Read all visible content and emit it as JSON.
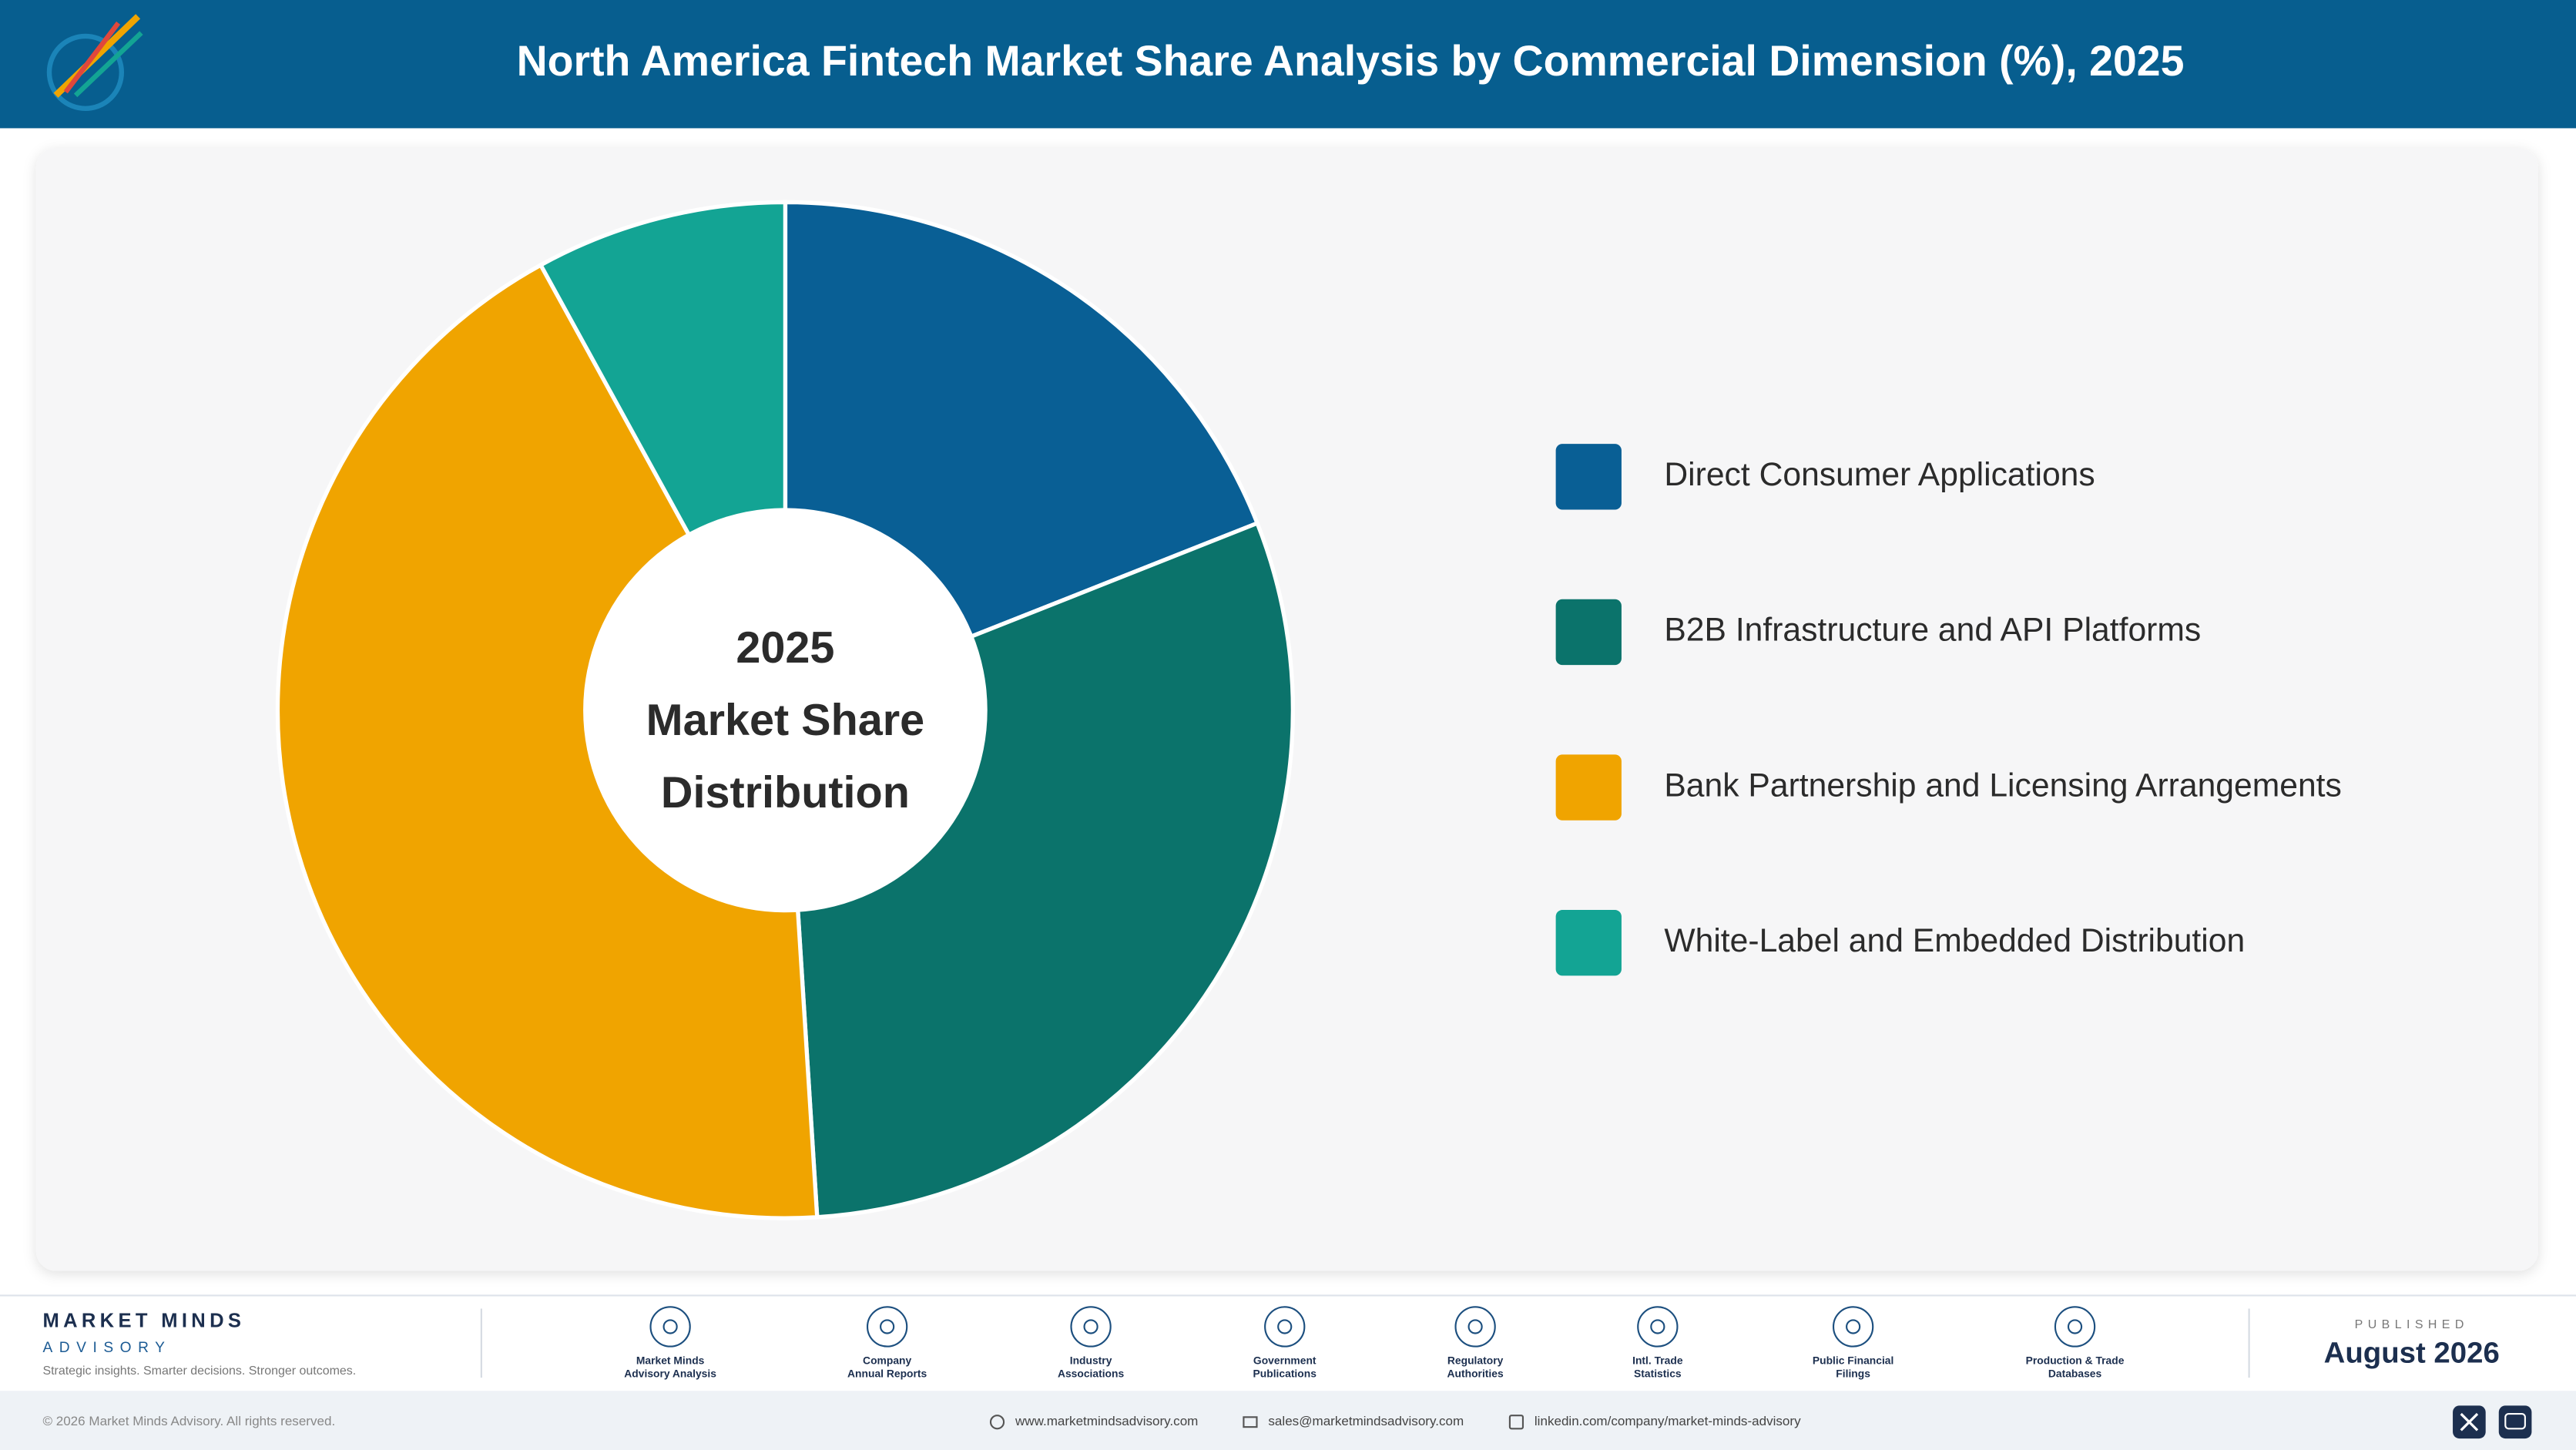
{
  "chart_data": {
    "type": "donut",
    "title": "North America Fintech Market Share Analysis by Commercial Dimension (%), 2025",
    "center_label": [
      "2025",
      "Market Share",
      "Distribution"
    ],
    "categories": [
      "Direct Consumer Applications",
      "B2B Infrastructure and API Platforms",
      "Bank Partnership and Licensing Arrangements",
      "White-Label and Embedded Distribution"
    ],
    "values": [
      19,
      30,
      43,
      8
    ],
    "colors": [
      "#095f95",
      "#0b736b",
      "#f0a400",
      "#13a494"
    ]
  },
  "footer": {
    "brand": "MARKET MINDS",
    "brand_sub": "ADVISORY",
    "tagline": "Strategic insights. Smarter decisions. Stronger outcomes.",
    "sources": [
      [
        "Market Minds",
        "Advisory Analysis"
      ],
      [
        "Company",
        "Annual Reports"
      ],
      [
        "Industry",
        "Associations"
      ],
      [
        "Government",
        "Publications"
      ],
      [
        "Regulatory",
        "Authorities"
      ],
      [
        "Intl. Trade",
        "Statistics"
      ],
      [
        "Public Financial",
        "Filings"
      ],
      [
        "Production & Trade",
        "Databases"
      ]
    ],
    "published_label": "PUBLISHED",
    "published_date": "August 2026",
    "copyright": "© 2026 Market Minds Advisory. All rights reserved.",
    "links": [
      "www.marketmindsadvisory.com",
      "sales@marketmindsadvisory.com",
      "linkedin.com/company/market-minds-advisory"
    ]
  }
}
